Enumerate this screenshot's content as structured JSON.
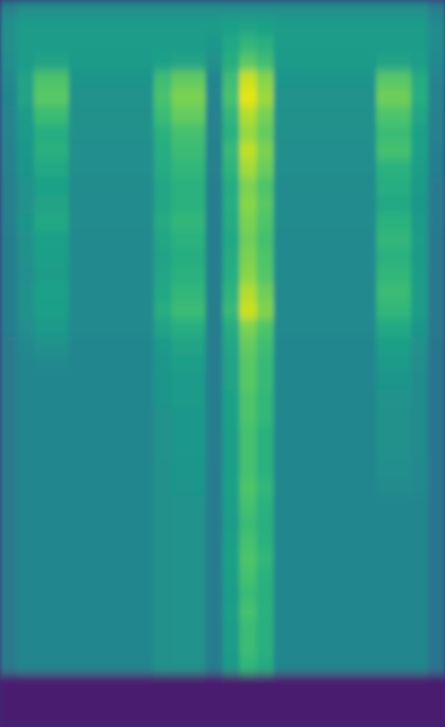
{
  "chart_data": {
    "type": "heatmap",
    "tick_labels": false,
    "color": "viridis",
    "clim": [
      0,
      1
    ],
    "cells": [
      [
        0.45,
        0.5,
        0.5,
        0.5,
        0.5,
        0.5,
        0.5,
        0.5,
        0.5,
        0.5,
        0.5,
        0.5,
        0.5,
        0.5,
        0.5,
        0.5,
        0.5,
        0.5,
        0.5,
        0.5,
        0.5,
        0.5,
        0.5,
        0.5,
        0.5,
        0.43
      ],
      [
        0.5,
        0.55,
        0.55,
        0.55,
        0.55,
        0.55,
        0.55,
        0.55,
        0.55,
        0.55,
        0.55,
        0.55,
        0.55,
        0.57,
        0.58,
        0.57,
        0.55,
        0.55,
        0.55,
        0.55,
        0.55,
        0.55,
        0.55,
        0.55,
        0.55,
        0.48
      ],
      [
        0.5,
        0.55,
        0.55,
        0.55,
        0.55,
        0.55,
        0.55,
        0.55,
        0.55,
        0.55,
        0.55,
        0.55,
        0.53,
        0.6,
        0.66,
        0.63,
        0.55,
        0.55,
        0.55,
        0.55,
        0.55,
        0.55,
        0.55,
        0.55,
        0.55,
        0.48
      ],
      [
        0.49,
        0.55,
        0.58,
        0.58,
        0.54,
        0.54,
        0.54,
        0.54,
        0.54,
        0.57,
        0.58,
        0.58,
        0.5,
        0.62,
        0.74,
        0.69,
        0.54,
        0.54,
        0.54,
        0.54,
        0.54,
        0.54,
        0.58,
        0.58,
        0.56,
        0.47
      ],
      [
        0.47,
        0.58,
        0.72,
        0.72,
        0.52,
        0.52,
        0.52,
        0.52,
        0.52,
        0.69,
        0.76,
        0.76,
        0.46,
        0.69,
        0.92,
        0.82,
        0.52,
        0.52,
        0.52,
        0.52,
        0.52,
        0.52,
        0.74,
        0.74,
        0.61,
        0.45
      ],
      [
        0.46,
        0.58,
        0.74,
        0.74,
        0.51,
        0.51,
        0.51,
        0.51,
        0.51,
        0.71,
        0.8,
        0.8,
        0.45,
        0.71,
        0.96,
        0.85,
        0.51,
        0.51,
        0.51,
        0.51,
        0.51,
        0.51,
        0.78,
        0.78,
        0.62,
        0.44
      ],
      [
        0.45,
        0.55,
        0.68,
        0.68,
        0.5,
        0.5,
        0.5,
        0.5,
        0.5,
        0.68,
        0.76,
        0.76,
        0.44,
        0.66,
        0.88,
        0.79,
        0.5,
        0.5,
        0.5,
        0.5,
        0.5,
        0.5,
        0.72,
        0.72,
        0.59,
        0.43
      ],
      [
        0.45,
        0.54,
        0.62,
        0.62,
        0.5,
        0.5,
        0.5,
        0.5,
        0.5,
        0.64,
        0.7,
        0.7,
        0.44,
        0.64,
        0.84,
        0.76,
        0.5,
        0.5,
        0.5,
        0.5,
        0.5,
        0.5,
        0.68,
        0.68,
        0.57,
        0.43
      ],
      [
        0.44,
        0.53,
        0.63,
        0.63,
        0.49,
        0.49,
        0.49,
        0.49,
        0.49,
        0.62,
        0.68,
        0.68,
        0.43,
        0.67,
        0.9,
        0.8,
        0.49,
        0.49,
        0.49,
        0.49,
        0.49,
        0.49,
        0.7,
        0.7,
        0.57,
        0.42
      ],
      [
        0.44,
        0.52,
        0.6,
        0.6,
        0.49,
        0.49,
        0.49,
        0.49,
        0.49,
        0.61,
        0.66,
        0.66,
        0.43,
        0.65,
        0.86,
        0.77,
        0.49,
        0.49,
        0.49,
        0.49,
        0.49,
        0.49,
        0.64,
        0.64,
        0.55,
        0.42
      ],
      [
        0.43,
        0.51,
        0.57,
        0.57,
        0.48,
        0.48,
        0.48,
        0.48,
        0.48,
        0.59,
        0.64,
        0.64,
        0.42,
        0.61,
        0.8,
        0.72,
        0.48,
        0.48,
        0.48,
        0.48,
        0.48,
        0.48,
        0.62,
        0.62,
        0.54,
        0.41
      ],
      [
        0.43,
        0.51,
        0.58,
        0.58,
        0.48,
        0.48,
        0.48,
        0.48,
        0.48,
        0.59,
        0.64,
        0.64,
        0.42,
        0.62,
        0.82,
        0.74,
        0.48,
        0.48,
        0.48,
        0.48,
        0.48,
        0.48,
        0.6,
        0.6,
        0.53,
        0.41
      ],
      [
        0.43,
        0.52,
        0.6,
        0.6,
        0.48,
        0.48,
        0.48,
        0.48,
        0.48,
        0.61,
        0.66,
        0.66,
        0.42,
        0.61,
        0.8,
        0.72,
        0.48,
        0.48,
        0.48,
        0.48,
        0.48,
        0.48,
        0.64,
        0.64,
        0.54,
        0.41
      ],
      [
        0.42,
        0.5,
        0.57,
        0.57,
        0.47,
        0.47,
        0.47,
        0.47,
        0.47,
        0.59,
        0.64,
        0.64,
        0.42,
        0.6,
        0.78,
        0.7,
        0.47,
        0.47,
        0.47,
        0.47,
        0.47,
        0.47,
        0.66,
        0.66,
        0.55,
        0.4
      ],
      [
        0.42,
        0.5,
        0.56,
        0.56,
        0.47,
        0.47,
        0.47,
        0.47,
        0.47,
        0.58,
        0.62,
        0.62,
        0.42,
        0.61,
        0.8,
        0.72,
        0.47,
        0.47,
        0.47,
        0.47,
        0.47,
        0.47,
        0.64,
        0.64,
        0.54,
        0.4
      ],
      [
        0.42,
        0.49,
        0.55,
        0.55,
        0.47,
        0.47,
        0.47,
        0.47,
        0.47,
        0.59,
        0.64,
        0.64,
        0.42,
        0.62,
        0.82,
        0.73,
        0.47,
        0.47,
        0.47,
        0.47,
        0.47,
        0.47,
        0.66,
        0.66,
        0.55,
        0.4
      ],
      [
        0.42,
        0.5,
        0.57,
        0.57,
        0.47,
        0.47,
        0.47,
        0.47,
        0.47,
        0.6,
        0.66,
        0.66,
        0.42,
        0.65,
        0.88,
        0.78,
        0.47,
        0.47,
        0.47,
        0.47,
        0.47,
        0.47,
        0.68,
        0.68,
        0.55,
        0.4
      ],
      [
        0.42,
        0.5,
        0.56,
        0.56,
        0.47,
        0.47,
        0.47,
        0.47,
        0.47,
        0.62,
        0.68,
        0.68,
        0.42,
        0.67,
        0.92,
        0.81,
        0.47,
        0.47,
        0.47,
        0.47,
        0.47,
        0.47,
        0.66,
        0.66,
        0.55,
        0.4
      ],
      [
        0.42,
        0.49,
        0.54,
        0.54,
        0.47,
        0.47,
        0.47,
        0.47,
        0.47,
        0.58,
        0.62,
        0.62,
        0.42,
        0.61,
        0.8,
        0.72,
        0.47,
        0.47,
        0.47,
        0.47,
        0.47,
        0.47,
        0.6,
        0.6,
        0.52,
        0.4
      ],
      [
        0.41,
        0.47,
        0.5,
        0.5,
        0.46,
        0.46,
        0.46,
        0.46,
        0.46,
        0.54,
        0.58,
        0.58,
        0.42,
        0.59,
        0.76,
        0.69,
        0.46,
        0.46,
        0.46,
        0.46,
        0.46,
        0.46,
        0.56,
        0.56,
        0.5,
        0.39
      ],
      [
        0.41,
        0.46,
        0.47,
        0.47,
        0.46,
        0.46,
        0.46,
        0.46,
        0.46,
        0.53,
        0.56,
        0.56,
        0.42,
        0.58,
        0.74,
        0.67,
        0.46,
        0.46,
        0.46,
        0.46,
        0.46,
        0.46,
        0.54,
        0.54,
        0.49,
        0.39
      ],
      [
        0.41,
        0.46,
        0.46,
        0.46,
        0.46,
        0.46,
        0.46,
        0.46,
        0.46,
        0.52,
        0.54,
        0.54,
        0.42,
        0.58,
        0.74,
        0.67,
        0.46,
        0.46,
        0.46,
        0.46,
        0.46,
        0.46,
        0.52,
        0.52,
        0.48,
        0.39
      ],
      [
        0.41,
        0.46,
        0.46,
        0.46,
        0.46,
        0.46,
        0.46,
        0.46,
        0.46,
        0.52,
        0.54,
        0.54,
        0.42,
        0.57,
        0.72,
        0.66,
        0.46,
        0.46,
        0.46,
        0.46,
        0.46,
        0.46,
        0.51,
        0.51,
        0.48,
        0.39
      ],
      [
        0.41,
        0.46,
        0.46,
        0.46,
        0.46,
        0.46,
        0.46,
        0.46,
        0.46,
        0.51,
        0.53,
        0.53,
        0.42,
        0.57,
        0.72,
        0.66,
        0.46,
        0.46,
        0.46,
        0.46,
        0.46,
        0.46,
        0.5,
        0.5,
        0.48,
        0.39
      ],
      [
        0.41,
        0.46,
        0.46,
        0.46,
        0.46,
        0.46,
        0.46,
        0.46,
        0.46,
        0.51,
        0.53,
        0.53,
        0.42,
        0.56,
        0.7,
        0.64,
        0.46,
        0.46,
        0.46,
        0.46,
        0.46,
        0.46,
        0.5,
        0.5,
        0.48,
        0.39
      ],
      [
        0.41,
        0.46,
        0.46,
        0.46,
        0.46,
        0.46,
        0.46,
        0.46,
        0.46,
        0.51,
        0.53,
        0.53,
        0.42,
        0.56,
        0.7,
        0.64,
        0.46,
        0.46,
        0.46,
        0.46,
        0.46,
        0.46,
        0.5,
        0.5,
        0.48,
        0.39
      ],
      [
        0.41,
        0.46,
        0.46,
        0.46,
        0.46,
        0.46,
        0.46,
        0.46,
        0.46,
        0.5,
        0.52,
        0.52,
        0.42,
        0.56,
        0.7,
        0.64,
        0.46,
        0.46,
        0.46,
        0.46,
        0.46,
        0.46,
        0.49,
        0.49,
        0.47,
        0.39
      ],
      [
        0.41,
        0.46,
        0.46,
        0.46,
        0.46,
        0.46,
        0.46,
        0.46,
        0.46,
        0.5,
        0.52,
        0.52,
        0.42,
        0.57,
        0.72,
        0.66,
        0.46,
        0.46,
        0.46,
        0.46,
        0.46,
        0.46,
        0.48,
        0.48,
        0.47,
        0.39
      ],
      [
        0.41,
        0.46,
        0.46,
        0.46,
        0.46,
        0.46,
        0.46,
        0.46,
        0.46,
        0.5,
        0.51,
        0.51,
        0.42,
        0.56,
        0.7,
        0.64,
        0.46,
        0.46,
        0.46,
        0.46,
        0.46,
        0.46,
        0.46,
        0.46,
        0.46,
        0.39
      ],
      [
        0.41,
        0.46,
        0.46,
        0.46,
        0.46,
        0.46,
        0.46,
        0.46,
        0.46,
        0.5,
        0.51,
        0.51,
        0.42,
        0.55,
        0.68,
        0.63,
        0.46,
        0.46,
        0.46,
        0.46,
        0.46,
        0.46,
        0.46,
        0.46,
        0.46,
        0.39
      ],
      [
        0.41,
        0.46,
        0.46,
        0.46,
        0.46,
        0.46,
        0.46,
        0.46,
        0.46,
        0.5,
        0.51,
        0.51,
        0.42,
        0.56,
        0.7,
        0.64,
        0.46,
        0.46,
        0.46,
        0.46,
        0.46,
        0.46,
        0.46,
        0.46,
        0.46,
        0.39
      ],
      [
        0.41,
        0.46,
        0.46,
        0.46,
        0.46,
        0.46,
        0.46,
        0.46,
        0.46,
        0.5,
        0.51,
        0.51,
        0.42,
        0.57,
        0.72,
        0.66,
        0.46,
        0.46,
        0.46,
        0.46,
        0.46,
        0.46,
        0.46,
        0.46,
        0.46,
        0.39
      ],
      [
        0.41,
        0.46,
        0.46,
        0.46,
        0.46,
        0.46,
        0.46,
        0.46,
        0.46,
        0.5,
        0.51,
        0.51,
        0.42,
        0.56,
        0.7,
        0.64,
        0.46,
        0.46,
        0.46,
        0.46,
        0.46,
        0.46,
        0.46,
        0.46,
        0.46,
        0.39
      ],
      [
        0.41,
        0.46,
        0.46,
        0.46,
        0.46,
        0.46,
        0.46,
        0.46,
        0.46,
        0.5,
        0.51,
        0.51,
        0.42,
        0.55,
        0.68,
        0.63,
        0.46,
        0.46,
        0.46,
        0.46,
        0.46,
        0.46,
        0.46,
        0.46,
        0.46,
        0.39
      ],
      [
        0.41,
        0.46,
        0.46,
        0.46,
        0.46,
        0.46,
        0.46,
        0.46,
        0.46,
        0.5,
        0.51,
        0.51,
        0.42,
        0.56,
        0.7,
        0.64,
        0.46,
        0.46,
        0.46,
        0.46,
        0.46,
        0.46,
        0.46,
        0.46,
        0.46,
        0.39
      ],
      [
        0.41,
        0.46,
        0.46,
        0.46,
        0.46,
        0.46,
        0.46,
        0.46,
        0.46,
        0.5,
        0.51,
        0.51,
        0.42,
        0.55,
        0.68,
        0.63,
        0.46,
        0.46,
        0.46,
        0.46,
        0.46,
        0.46,
        0.46,
        0.46,
        0.46,
        0.39
      ],
      [
        0.41,
        0.46,
        0.46,
        0.46,
        0.46,
        0.46,
        0.46,
        0.46,
        0.46,
        0.5,
        0.51,
        0.51,
        0.42,
        0.55,
        0.68,
        0.63,
        0.46,
        0.46,
        0.46,
        0.46,
        0.46,
        0.46,
        0.46,
        0.46,
        0.46,
        0.39
      ],
      [
        0.41,
        0.46,
        0.46,
        0.46,
        0.46,
        0.46,
        0.46,
        0.46,
        0.46,
        0.5,
        0.51,
        0.51,
        0.42,
        0.54,
        0.66,
        0.61,
        0.46,
        0.46,
        0.46,
        0.46,
        0.46,
        0.46,
        0.46,
        0.46,
        0.46,
        0.39
      ],
      [
        0.08,
        0.08,
        0.08,
        0.08,
        0.08,
        0.08,
        0.08,
        0.08,
        0.08,
        0.08,
        0.08,
        0.08,
        0.08,
        0.08,
        0.08,
        0.08,
        0.08,
        0.08,
        0.08,
        0.08,
        0.08,
        0.08,
        0.08,
        0.08,
        0.08,
        0.08
      ],
      [
        0.08,
        0.08,
        0.08,
        0.08,
        0.08,
        0.08,
        0.08,
        0.08,
        0.08,
        0.08,
        0.08,
        0.08,
        0.08,
        0.08,
        0.08,
        0.08,
        0.08,
        0.08,
        0.08,
        0.08,
        0.08,
        0.08,
        0.08,
        0.08,
        0.08,
        0.08
      ],
      [
        0.08,
        0.08,
        0.08,
        0.08,
        0.08,
        0.08,
        0.08,
        0.08,
        0.08,
        0.08,
        0.08,
        0.08,
        0.08,
        0.08,
        0.08,
        0.08,
        0.08,
        0.08,
        0.08,
        0.08,
        0.08,
        0.08,
        0.08,
        0.08,
        0.08,
        0.08
      ]
    ]
  }
}
